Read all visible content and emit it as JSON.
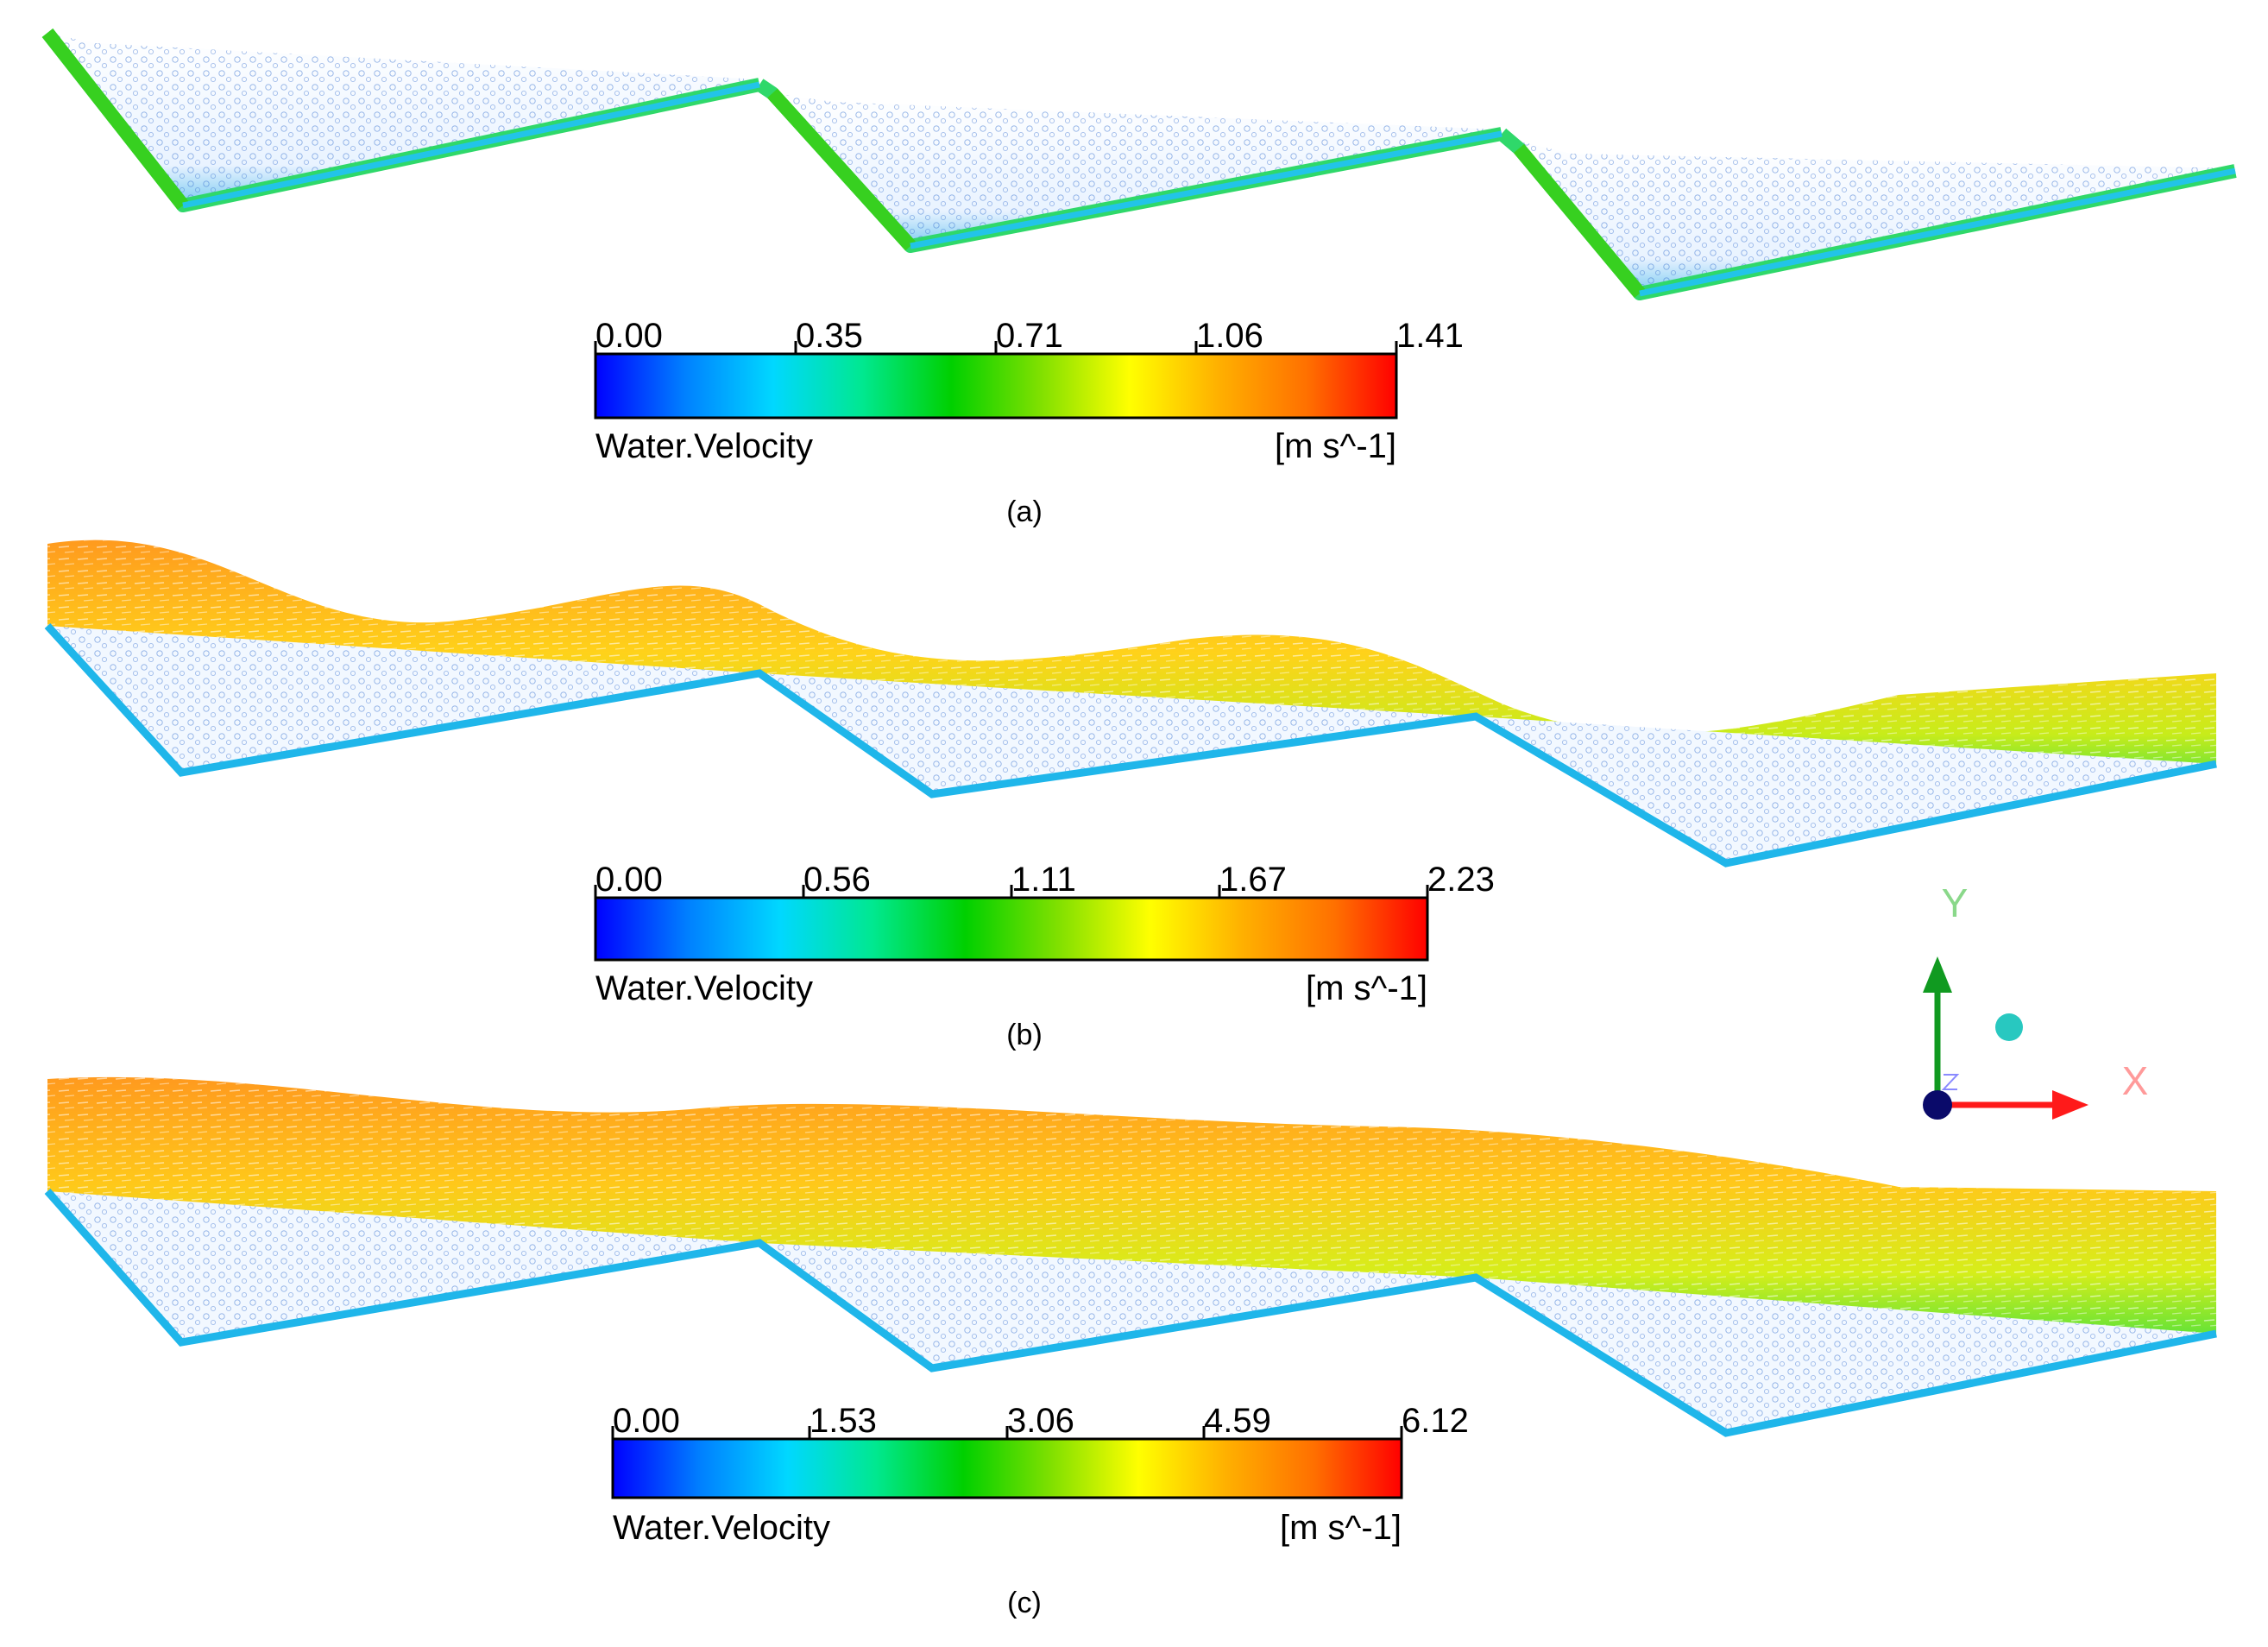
{
  "colormap": [
    "#0000ff",
    "#0080ff",
    "#00d8ff",
    "#00e890",
    "#00d000",
    "#80e000",
    "#ffff00",
    "#ffb000",
    "#ff7000",
    "#ff0000"
  ],
  "panels": [
    {
      "caption": "(a)",
      "legend": {
        "ticks": [
          "0.00",
          "0.35",
          "0.71",
          "1.06",
          "1.41"
        ],
        "variable": "Water.Velocity",
        "unit": "[m s^-1]"
      }
    },
    {
      "caption": "(b)",
      "legend": {
        "ticks": [
          "0.00",
          "0.56",
          "1.11",
          "1.67",
          "2.23"
        ],
        "variable": "Water.Velocity",
        "unit": "[m s^-1]"
      }
    },
    {
      "caption": "(c)",
      "legend": {
        "ticks": [
          "0.00",
          "1.53",
          "3.06",
          "4.59",
          "6.12"
        ],
        "variable": "Water.Velocity",
        "unit": "[m s^-1]"
      }
    }
  ],
  "axes": {
    "y_label": "Y",
    "x_label": "X"
  }
}
